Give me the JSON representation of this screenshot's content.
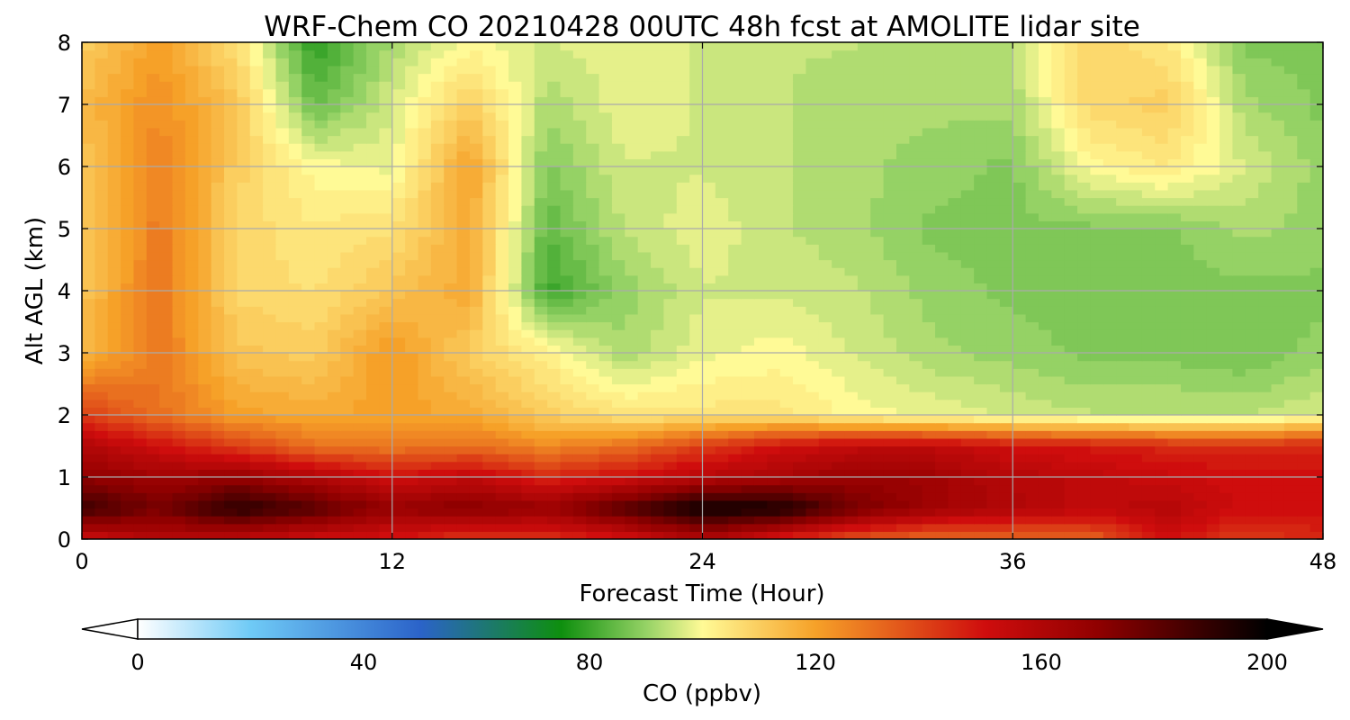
{
  "chart_data": {
    "type": "heatmap",
    "title": "WRF-Chem CO  20210428 00UTC 48h fcst at AMOLITE lidar site",
    "xlabel": "Forecast Time (Hour)",
    "ylabel": "Alt AGL (km)",
    "xlim": [
      0,
      48
    ],
    "ylim": [
      0,
      8
    ],
    "x_ticks": [
      "0",
      "12",
      "24",
      "36",
      "48"
    ],
    "y_ticks": [
      "0",
      "1",
      "2",
      "3",
      "4",
      "5",
      "6",
      "7",
      "8"
    ],
    "grid": true,
    "x": [
      0,
      3,
      6,
      9,
      12,
      15,
      18,
      21,
      24,
      27,
      30,
      33,
      36,
      39,
      42,
      45,
      48
    ],
    "y": [
      0,
      0.5,
      1,
      1.5,
      2,
      3,
      4,
      5,
      6,
      7,
      8
    ],
    "z": [
      [
        150,
        158,
        155,
        150,
        148,
        140,
        142,
        148,
        160,
        145,
        135,
        130,
        130,
        132,
        150,
        140,
        145
      ],
      [
        188,
        175,
        192,
        182,
        168,
        172,
        168,
        182,
        198,
        195,
        175,
        165,
        160,
        155,
        158,
        150,
        150
      ],
      [
        170,
        165,
        168,
        160,
        150,
        155,
        145,
        150,
        158,
        162,
        168,
        165,
        158,
        155,
        152,
        150,
        150
      ],
      [
        160,
        150,
        140,
        130,
        128,
        130,
        125,
        130,
        140,
        150,
        155,
        155,
        150,
        148,
        145,
        145,
        145
      ],
      [
        140,
        130,
        120,
        118,
        120,
        118,
        110,
        105,
        105,
        105,
        100,
        98,
        96,
        94,
        94,
        94,
        96
      ],
      [
        115,
        128,
        112,
        110,
        122,
        110,
        102,
        92,
        98,
        100,
        96,
        92,
        90,
        88,
        88,
        86,
        90
      ],
      [
        112,
        128,
        108,
        106,
        112,
        118,
        80,
        90,
        96,
        96,
        94,
        90,
        88,
        88,
        88,
        88,
        88
      ],
      [
        110,
        128,
        108,
        104,
        106,
        118,
        84,
        94,
        98,
        94,
        92,
        88,
        88,
        88,
        88,
        92,
        90
      ],
      [
        112,
        126,
        110,
        100,
        98,
        120,
        88,
        96,
        96,
        94,
        92,
        90,
        88,
        100,
        104,
        96,
        90
      ],
      [
        114,
        124,
        112,
        85,
        96,
        110,
        92,
        98,
        96,
        94,
        92,
        92,
        92,
        108,
        110,
        92,
        88
      ],
      [
        110,
        120,
        106,
        78,
        92,
        100,
        96,
        98,
        96,
        94,
        94,
        92,
        94,
        108,
        104,
        88,
        88
      ]
    ],
    "colorbar": {
      "label": "CO  (ppbv)",
      "min": 0,
      "max": 200,
      "ticks": [
        "0",
        "40",
        "80",
        "120",
        "160",
        "200"
      ],
      "extend": "both",
      "stops": [
        {
          "v": 0,
          "c": "#ffffff"
        },
        {
          "v": 20,
          "c": "#6fcaf6"
        },
        {
          "v": 50,
          "c": "#2b63c9"
        },
        {
          "v": 75,
          "c": "#0e8f0e"
        },
        {
          "v": 90,
          "c": "#95d265"
        },
        {
          "v": 100,
          "c": "#fffa96"
        },
        {
          "v": 120,
          "c": "#f6a128"
        },
        {
          "v": 150,
          "c": "#cf0d0d"
        },
        {
          "v": 170,
          "c": "#900000"
        },
        {
          "v": 200,
          "c": "#000000"
        }
      ]
    }
  }
}
